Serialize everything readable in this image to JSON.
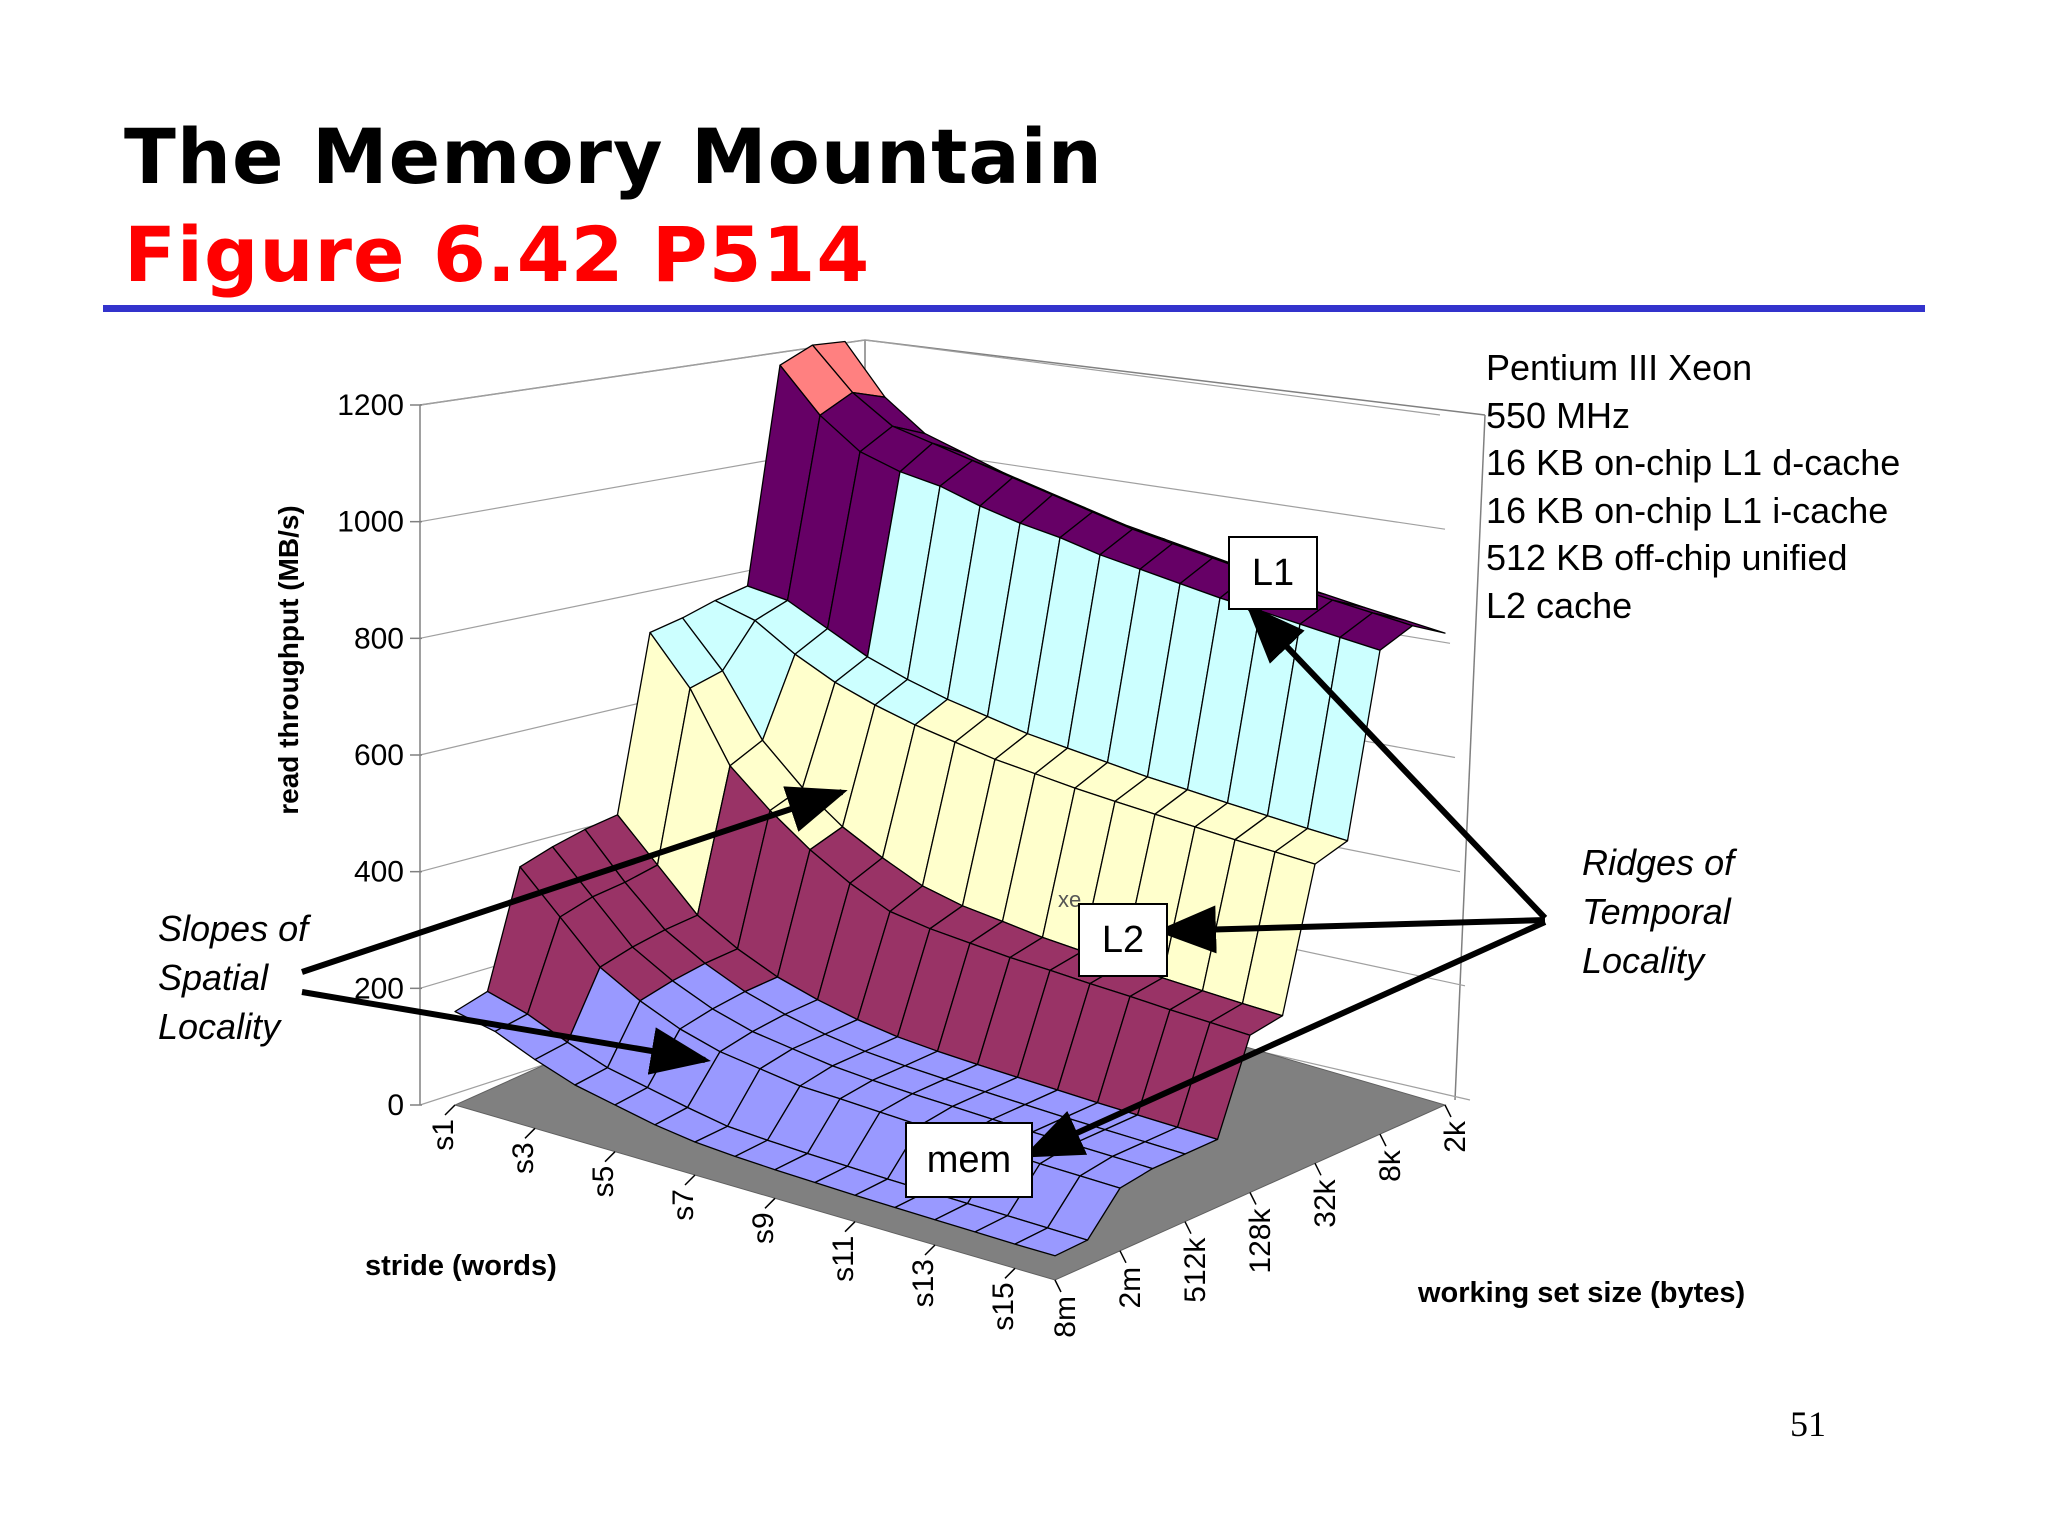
{
  "slide": {
    "title": "The Memory Mountain",
    "subtitle": "Figure 6.42 P514",
    "page_number": "51",
    "rule_color": "#3333cc",
    "title_color": "#000000",
    "subtitle_color": "#ff0000"
  },
  "specs": [
    "Pentium III Xeon",
    "550 MHz",
    "16 KB on-chip L1 d-cache",
    "16 KB on-chip L1 i-cache",
    "512 KB  off-chip unified",
    "L2 cache"
  ],
  "annotations": {
    "spatial": [
      "Slopes of",
      "Spatial",
      "Locality"
    ],
    "temporal": [
      "Ridges of",
      "Temporal",
      "Locality"
    ],
    "labels": {
      "l1": "L1",
      "l2": "L2",
      "mem": "mem"
    },
    "stray_text": "xe"
  },
  "chart_data": {
    "type": "surface",
    "zlabel": "read throughput (MB/s)",
    "xlabel": "stride (words)",
    "ylabel": "working set size (bytes)",
    "zlim": [
      0,
      1200
    ],
    "z_ticks": [
      0,
      200,
      400,
      600,
      800,
      1000,
      1200
    ],
    "stride_ticks": [
      "s1",
      "s3",
      "s5",
      "s7",
      "s9",
      "s11",
      "s13",
      "s15"
    ],
    "size_ticks": [
      "8m",
      "2m",
      "512k",
      "128k",
      "32k",
      "8k",
      "2k"
    ],
    "strides": [
      1,
      2,
      3,
      4,
      5,
      6,
      7,
      8,
      9,
      10,
      11,
      12,
      13,
      14,
      15,
      16
    ],
    "sizes": [
      "8m",
      "4m",
      "2m",
      "1024k",
      "512k",
      "256k",
      "128k",
      "64k",
      "32k",
      "16k",
      "8k",
      "4k",
      "2k"
    ],
    "values": [
      [
        170,
        180,
        380,
        390,
        395,
        395,
        700,
        700,
        705,
        705,
        1080,
        1090,
        1070
      ],
      [
        155,
        160,
        310,
        320,
        320,
        325,
        620,
        625,
        690,
        700,
        1010,
        1025,
        990
      ],
      [
        125,
        130,
        240,
        250,
        255,
        255,
        500,
        520,
        650,
        670,
        965,
        985,
        945
      ],
      [
        100,
        105,
        200,
        210,
        215,
        215,
        440,
        455,
        620,
        640,
        950,
        975,
        930
      ],
      [
        85,
        90,
        170,
        180,
        185,
        185,
        390,
        405,
        600,
        620,
        945,
        965,
        915
      ],
      [
        70,
        75,
        150,
        160,
        165,
        165,
        350,
        370,
        585,
        605,
        930,
        955,
        905
      ],
      [
        60,
        62,
        140,
        150,
        150,
        150,
        320,
        340,
        575,
        595,
        920,
        945,
        895
      ],
      [
        55,
        58,
        130,
        140,
        140,
        140,
        310,
        325,
        565,
        585,
        915,
        935,
        885
      ],
      [
        52,
        55,
        128,
        135,
        135,
        135,
        305,
        318,
        560,
        580,
        905,
        925,
        880
      ],
      [
        50,
        53,
        125,
        132,
        132,
        132,
        300,
        310,
        555,
        575,
        900,
        920,
        875
      ],
      [
        48,
        51,
        122,
        130,
        130,
        130,
        298,
        306,
        552,
        570,
        895,
        915,
        870
      ],
      [
        47,
        50,
        120,
        128,
        128,
        128,
        295,
        303,
        550,
        568,
        890,
        910,
        868
      ],
      [
        46,
        49,
        118,
        126,
        126,
        126,
        293,
        300,
        548,
        565,
        888,
        905,
        865
      ],
      [
        45,
        48,
        116,
        125,
        125,
        125,
        290,
        298,
        546,
        563,
        885,
        902,
        862
      ],
      [
        44,
        47,
        115,
        124,
        124,
        124,
        288,
        296,
        545,
        561,
        882,
        900,
        860
      ],
      [
        44,
        46,
        114,
        123,
        123,
        123,
        286,
        295,
        544,
        560,
        880,
        898,
        858
      ]
    ],
    "color_bands": [
      {
        "from": 0,
        "to": 200,
        "color": "#9999ff"
      },
      {
        "from": 200,
        "to": 400,
        "color": "#993366"
      },
      {
        "from": 400,
        "to": 600,
        "color": "#ffffcc"
      },
      {
        "from": 600,
        "to": 800,
        "color": "#ccffff"
      },
      {
        "from": 800,
        "to": 1000,
        "color": "#660066"
      },
      {
        "from": 1000,
        "to": 1200,
        "color": "#ff8080"
      }
    ],
    "floor_color": "#808080"
  }
}
